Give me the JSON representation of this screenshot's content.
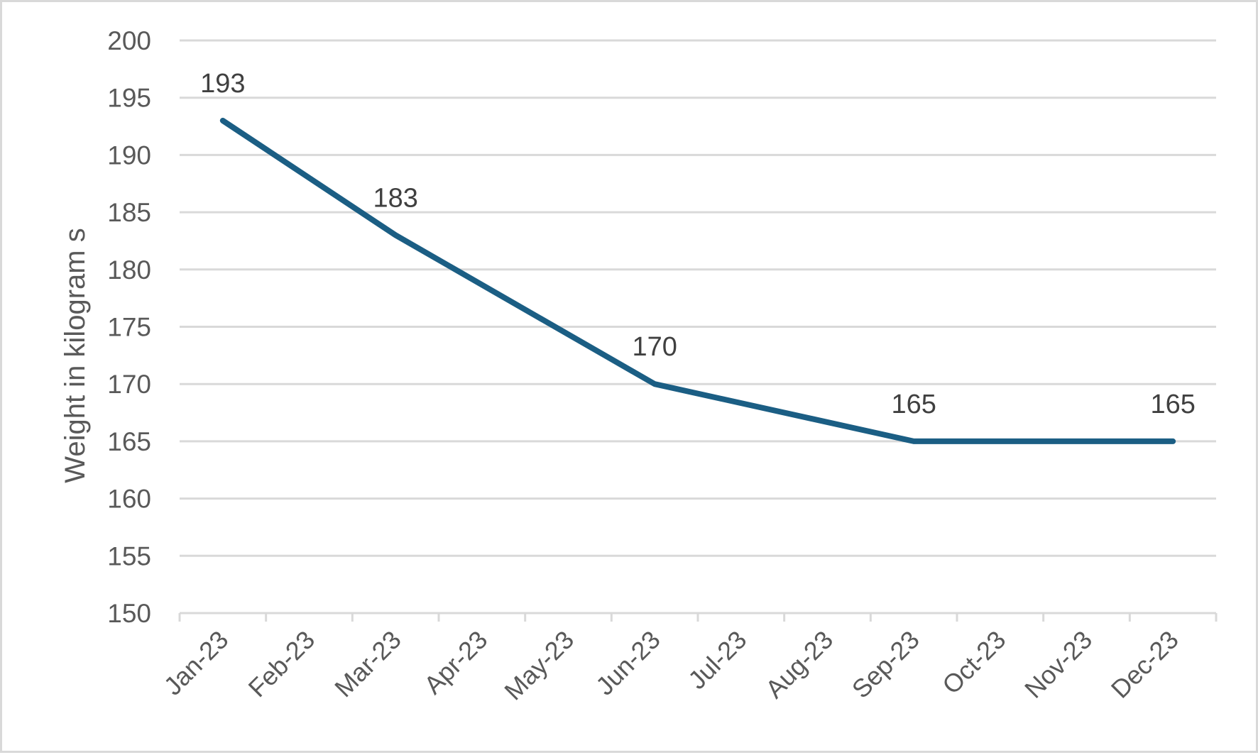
{
  "chart_data": {
    "type": "line",
    "categories": [
      "Jan-23",
      "Feb-23",
      "Mar-23",
      "Apr-23",
      "May-23",
      "Jun-23",
      "Jul-23",
      "Aug-23",
      "Sep-23",
      "Oct-23",
      "Nov-23",
      "Dec-23"
    ],
    "series": [
      {
        "x": [
          "Jan-23",
          "Mar-23",
          "Jun-23",
          "Sep-23",
          "Dec-23"
        ],
        "values": [
          193,
          183,
          170,
          165,
          165
        ],
        "data_labels": [
          "193",
          "183",
          "170",
          "165",
          "165"
        ],
        "color": "#1b5e84"
      }
    ],
    "title": "",
    "xlabel": "",
    "ylabel": "Weight in kilogram s",
    "ylim": [
      150,
      200
    ],
    "yticks": [
      150,
      155,
      160,
      165,
      170,
      175,
      180,
      185,
      190,
      195,
      200
    ],
    "ytick_labels": [
      "150",
      "155",
      "160",
      "165",
      "170",
      "175",
      "180",
      "185",
      "190",
      "195",
      "200"
    ],
    "grid": true,
    "legend": "none",
    "colors": {
      "gridline": "#d9d9d9",
      "tick_text": "#595959",
      "label_text": "#404040"
    }
  }
}
